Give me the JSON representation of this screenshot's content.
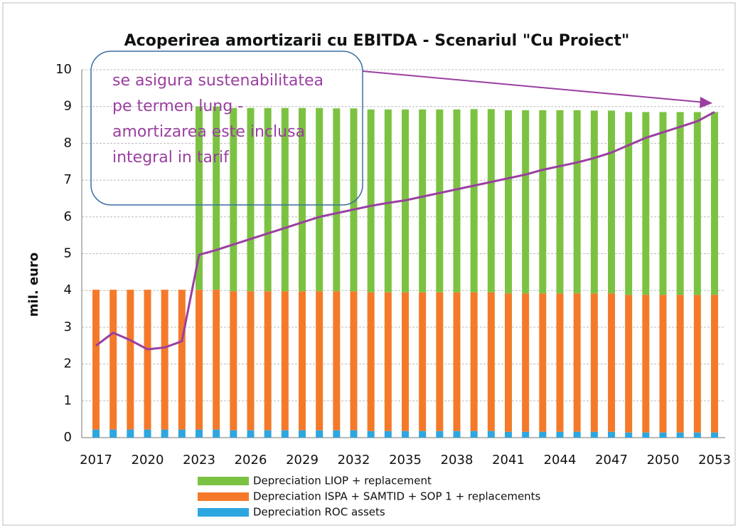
{
  "chart_data": {
    "type": "bar",
    "title": "Acoperirea amortizarii cu EBITDA - Scenariul \"Cu Proiect\"",
    "ylabel": "mil. euro",
    "categories": [
      "2017",
      null,
      null,
      "2020",
      null,
      null,
      "2023",
      null,
      null,
      "2026",
      null,
      null,
      "2029",
      null,
      null,
      "2032",
      null,
      null,
      "2035",
      null,
      null,
      "2038",
      null,
      null,
      "2041",
      null,
      null,
      "2044",
      null,
      null,
      "2047",
      null,
      null,
      "2050",
      null,
      null,
      "2053"
    ],
    "series": [
      {
        "name": "Depreciation ROC  assets",
        "color": "#2ea6e0",
        "values": [
          0.22,
          0.22,
          0.22,
          0.22,
          0.22,
          0.22,
          0.22,
          0.22,
          0.2,
          0.2,
          0.2,
          0.2,
          0.2,
          0.2,
          0.2,
          0.2,
          0.18,
          0.18,
          0.18,
          0.18,
          0.18,
          0.18,
          0.18,
          0.18,
          0.16,
          0.16,
          0.16,
          0.16,
          0.16,
          0.16,
          0.16,
          0.14,
          0.14,
          0.14,
          0.14,
          0.14,
          0.14
        ]
      },
      {
        "name": "Depreciation ISPA + SAMTID + SOP 1 + replacements",
        "color": "#f47a2a",
        "values": [
          3.8,
          3.8,
          3.8,
          3.8,
          3.8,
          3.8,
          3.8,
          3.8,
          3.78,
          3.78,
          3.78,
          3.78,
          3.78,
          3.78,
          3.78,
          3.78,
          3.77,
          3.77,
          3.77,
          3.77,
          3.77,
          3.77,
          3.77,
          3.77,
          3.76,
          3.76,
          3.76,
          3.76,
          3.76,
          3.76,
          3.76,
          3.74,
          3.74,
          3.74,
          3.74,
          3.74,
          3.74
        ]
      },
      {
        "name": "Depreciation LIOP + replacement",
        "color": "#7cc242",
        "values": [
          0,
          0,
          0,
          0,
          0,
          0,
          4.98,
          4.98,
          4.98,
          4.98,
          4.98,
          4.98,
          4.98,
          4.98,
          4.97,
          4.97,
          4.97,
          4.97,
          4.97,
          4.97,
          4.97,
          4.97,
          4.98,
          4.98,
          4.98,
          4.98,
          4.98,
          4.98,
          4.98,
          4.97,
          4.97,
          4.97,
          4.97,
          4.97,
          4.97,
          4.97,
          4.97
        ]
      },
      {
        "type": "line",
        "color": "#9a3fa0",
        "values": [
          2.5,
          2.85,
          2.65,
          2.4,
          2.45,
          2.62,
          4.97,
          5.1,
          5.25,
          5.4,
          5.55,
          5.7,
          5.85,
          6.0,
          6.1,
          6.2,
          6.3,
          6.38,
          6.45,
          6.55,
          6.65,
          6.75,
          6.85,
          6.95,
          7.05,
          7.15,
          7.28,
          7.38,
          7.48,
          7.6,
          7.75,
          7.95,
          8.15,
          8.3,
          8.45,
          8.6,
          8.85
        ]
      }
    ],
    "ylim": [
      0,
      10
    ],
    "yticks": [
      0,
      1,
      2,
      3,
      4,
      5,
      6,
      7,
      8,
      9,
      10
    ],
    "grid": true,
    "stacked": true,
    "legend": "bottom",
    "annotation": {
      "lines": [
        "se asigura sustenabilitatea",
        "pe termen  lung -",
        "amortizarea  este inclusa",
        "integral in tarif"
      ],
      "color": "#9a3fa0"
    }
  }
}
